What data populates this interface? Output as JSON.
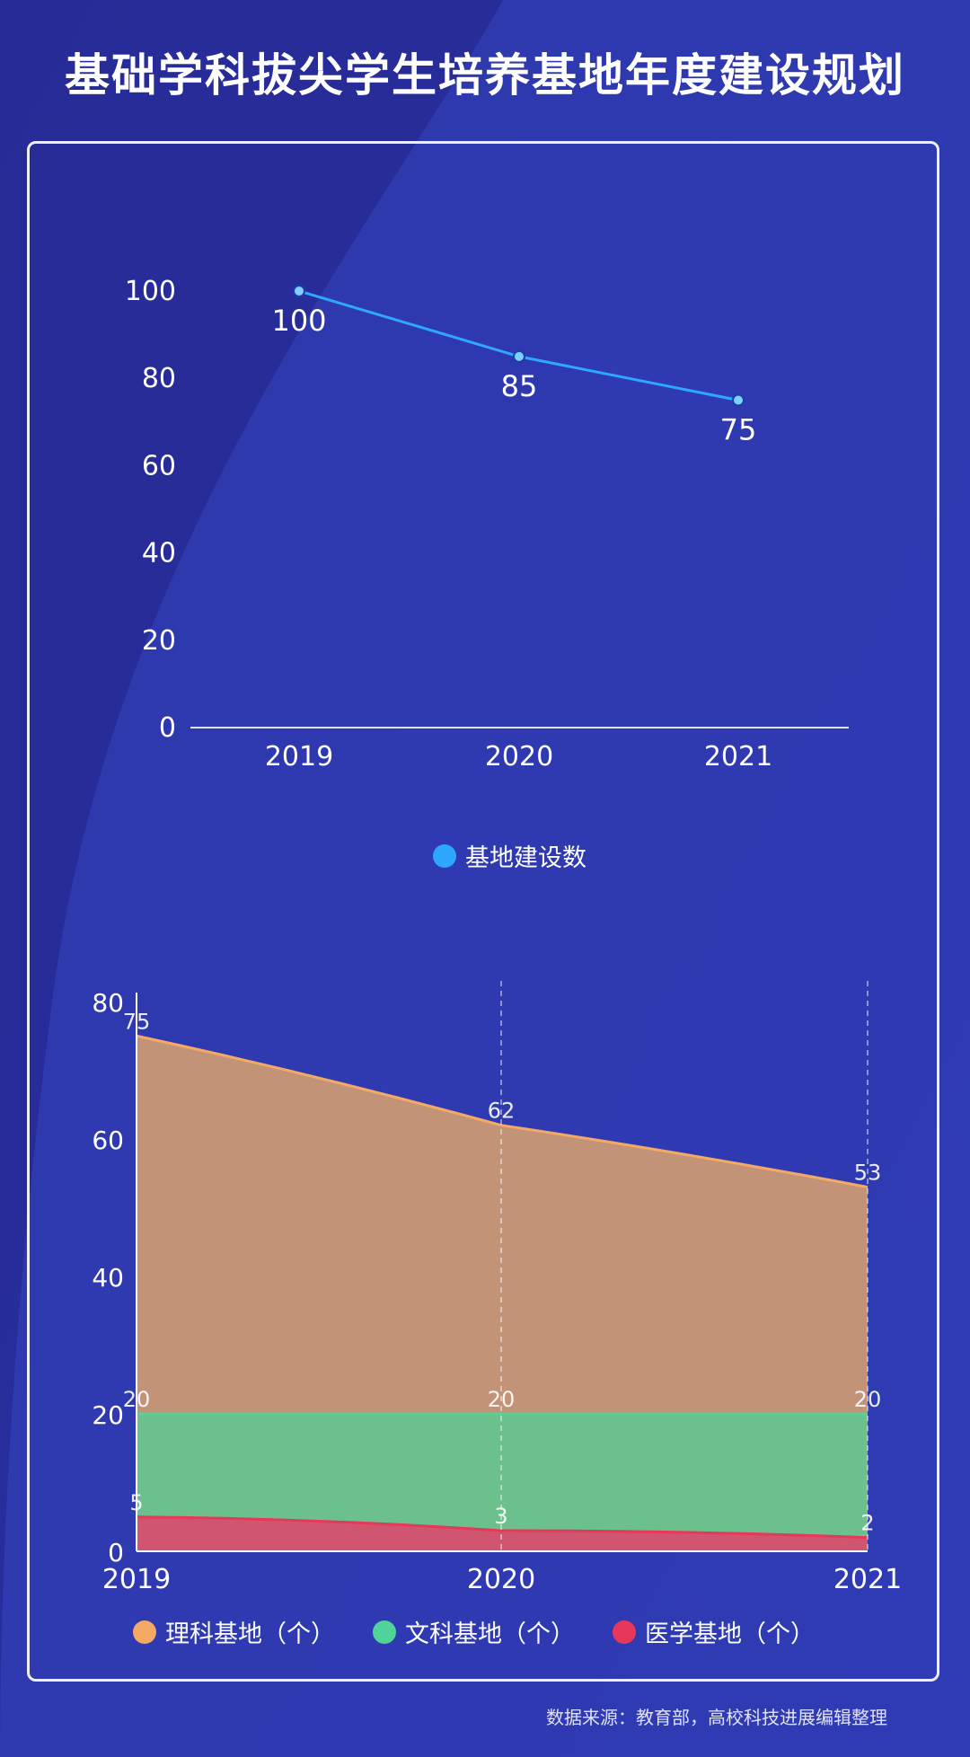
{
  "title": "基础学科拔尖学生培养基地年度建设规划",
  "source": "数据来源：教育部，高校科技进展编辑整理",
  "colors": {
    "background": "#2a34a6",
    "line": "#2ea7ff",
    "science": "#f4a964",
    "humanities": "#4fd39a",
    "medical": "#e8385a"
  },
  "chart_data": [
    {
      "type": "line",
      "categories": [
        "2019",
        "2020",
        "2021"
      ],
      "series": [
        {
          "name": "基地建设数",
          "values": [
            100,
            85,
            75
          ]
        }
      ],
      "ylim": [
        0,
        100
      ],
      "yticks": [
        0,
        20,
        40,
        60,
        80,
        100
      ],
      "legend": "bottom-center",
      "data_labels": true
    },
    {
      "type": "area",
      "categories": [
        "2019",
        "2020",
        "2021"
      ],
      "series": [
        {
          "name": "理科基地（个）",
          "values": [
            75,
            62,
            53
          ]
        },
        {
          "name": "文科基地（个）",
          "values": [
            20,
            20,
            20
          ]
        },
        {
          "name": "医学基地（个）",
          "values": [
            5,
            3,
            2
          ]
        }
      ],
      "ylim": [
        0,
        80
      ],
      "yticks": [
        0,
        20,
        40,
        60,
        80
      ],
      "legend": "bottom-center",
      "data_labels": true
    }
  ]
}
